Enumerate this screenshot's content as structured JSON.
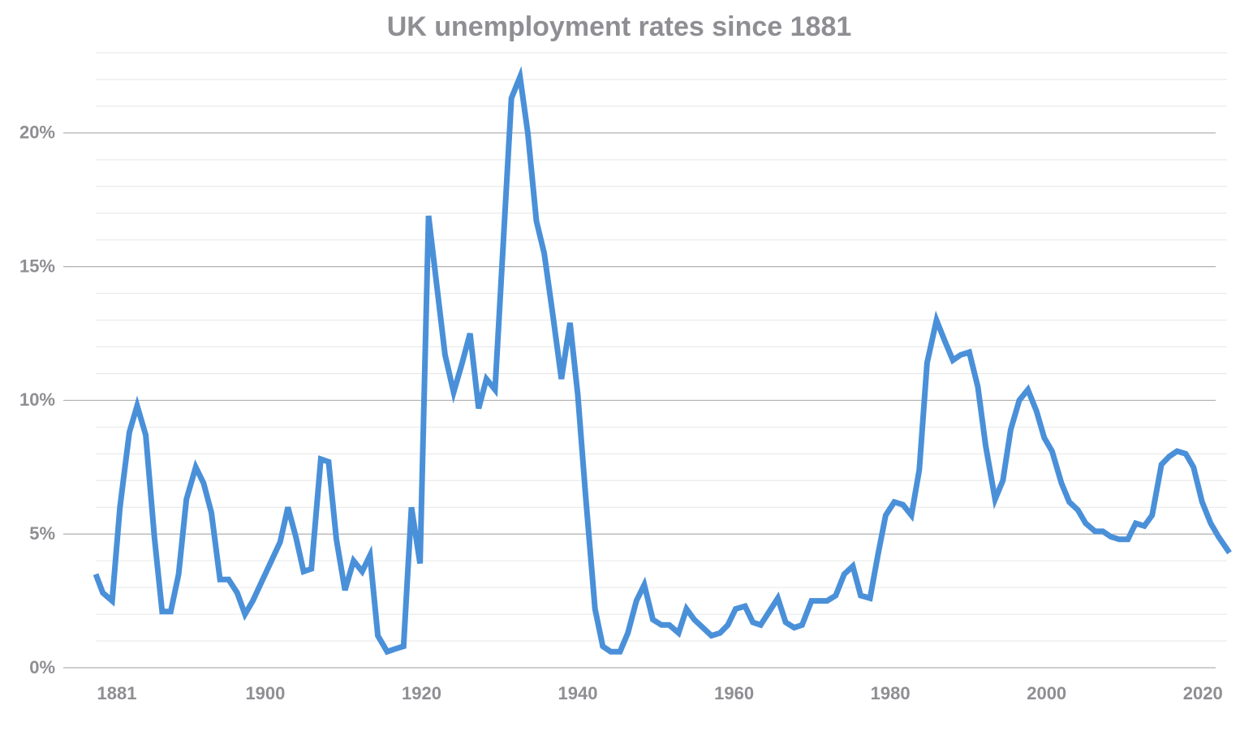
{
  "chart_data": {
    "type": "line",
    "title": "UK unemployment rates since 1881",
    "x": [
      1878.3,
      1879.2,
      1880.4,
      1881.4,
      1882.6,
      1883.6,
      1884.7,
      1885.8,
      1886.8,
      1887.9,
      1888.9,
      1889.9,
      1891.1,
      1892.1,
      1893.1,
      1894.2,
      1895.3,
      1896.4,
      1897.4,
      1898.4,
      1901.9,
      1902.9,
      1903.9,
      1904.9,
      1905.9,
      1907.1,
      1908.1,
      1909.1,
      1910.2,
      1911.3,
      1912.4,
      1913.4,
      1914.4,
      1915.6,
      1916.6,
      1917.7,
      1918.7,
      1919.8,
      1920.9,
      1921.9,
      1923.0,
      1924.1,
      1925.1,
      1926.2,
      1927.3,
      1928.3,
      1929.4,
      1931.5,
      1932.6,
      1933.6,
      1934.7,
      1935.7,
      1936.8,
      1937.9,
      1939.0,
      1940.0,
      1941.0,
      1942.2,
      1943.2,
      1944.2,
      1945.4,
      1946.4,
      1947.5,
      1948.5,
      1949.6,
      1950.7,
      1951.7,
      1952.9,
      1953.9,
      1954.9,
      1956.0,
      1957.1,
      1958.2,
      1959.2,
      1960.2,
      1961.4,
      1962.4,
      1963.4,
      1964.5,
      1965.6,
      1966.6,
      1967.7,
      1968.7,
      1969.9,
      1970.9,
      1971.9,
      1973.0,
      1974.1,
      1975.2,
      1976.2,
      1977.4,
      1978.4,
      1979.4,
      1980.5,
      1981.6,
      1982.7,
      1983.7,
      1984.7,
      1985.9,
      1987.0,
      1988.0,
      1989.0,
      1990.1,
      1991.2,
      1992.2,
      1993.4,
      1994.4,
      1995.4,
      1996.5,
      1997.6,
      1998.7,
      1999.7,
      2000.7,
      2001.9,
      2002.9,
      2004.0,
      2005.0,
      2006.2,
      2007.2,
      2008.2,
      2009.3,
      2010.4,
      2011.4,
      2012.5,
      2013.5,
      2014.7,
      2015.7,
      2016.7,
      2017.8,
      2018.8,
      2019.9,
      2021.0,
      2022.0,
      2023.4
    ],
    "series": [
      {
        "color": "#4a90d9",
        "values": [
          3.5,
          2.8,
          2.5,
          6.0,
          8.8,
          9.8,
          8.7,
          4.9,
          2.1,
          2.1,
          3.5,
          6.3,
          7.5,
          6.9,
          5.8,
          3.3,
          3.3,
          2.8,
          2.0,
          2.5,
          4.7,
          6.0,
          4.9,
          3.6,
          3.7,
          7.8,
          7.7,
          4.8,
          2.9,
          4.0,
          3.6,
          4.2,
          1.2,
          0.6,
          0.7,
          0.8,
          6.0,
          3.9,
          16.9,
          14.4,
          11.7,
          10.3,
          11.3,
          12.5,
          9.7,
          10.8,
          10.4,
          21.3,
          22.1,
          20.0,
          16.7,
          15.5,
          13.2,
          10.8,
          12.9,
          10.2,
          6.4,
          2.2,
          0.8,
          0.6,
          0.6,
          1.3,
          2.5,
          3.1,
          1.8,
          1.6,
          1.6,
          1.3,
          2.2,
          1.8,
          1.5,
          1.2,
          1.3,
          1.6,
          2.2,
          2.3,
          1.7,
          1.6,
          2.1,
          2.6,
          1.7,
          1.5,
          1.6,
          2.5,
          2.5,
          2.5,
          2.7,
          3.5,
          3.8,
          2.7,
          2.6,
          4.2,
          5.7,
          6.2,
          6.1,
          5.7,
          7.4,
          11.4,
          13.0,
          12.2,
          11.5,
          11.7,
          11.8,
          10.5,
          8.3,
          6.3,
          7.0,
          8.9,
          10.0,
          10.4,
          9.6,
          8.6,
          8.1,
          6.9,
          6.2,
          5.9,
          5.4,
          5.1,
          5.1,
          4.9,
          4.8,
          4.8,
          5.4,
          5.3,
          5.7,
          7.6,
          7.9,
          8.1,
          8.0,
          7.5,
          6.2,
          5.4,
          4.9,
          4.3
        ]
      }
    ],
    "xlim": [
      1878.3,
      2023.4
    ],
    "xticks": [
      1881,
      1900,
      1920,
      1940,
      1960,
      1980,
      2000,
      2020
    ],
    "ylim": [
      0,
      23
    ],
    "yticks": [
      {
        "value": 0,
        "label": "0%"
      },
      {
        "value": 5,
        "label": "5%"
      },
      {
        "value": 10,
        "label": "10%"
      },
      {
        "value": 15,
        "label": "15%"
      },
      {
        "value": 20,
        "label": "20%"
      }
    ],
    "minor_yticks": [
      1,
      2,
      3,
      4,
      6,
      7,
      8,
      9,
      11,
      12,
      13,
      14,
      16,
      17,
      18,
      19,
      21,
      22,
      23
    ],
    "grid": true
  }
}
